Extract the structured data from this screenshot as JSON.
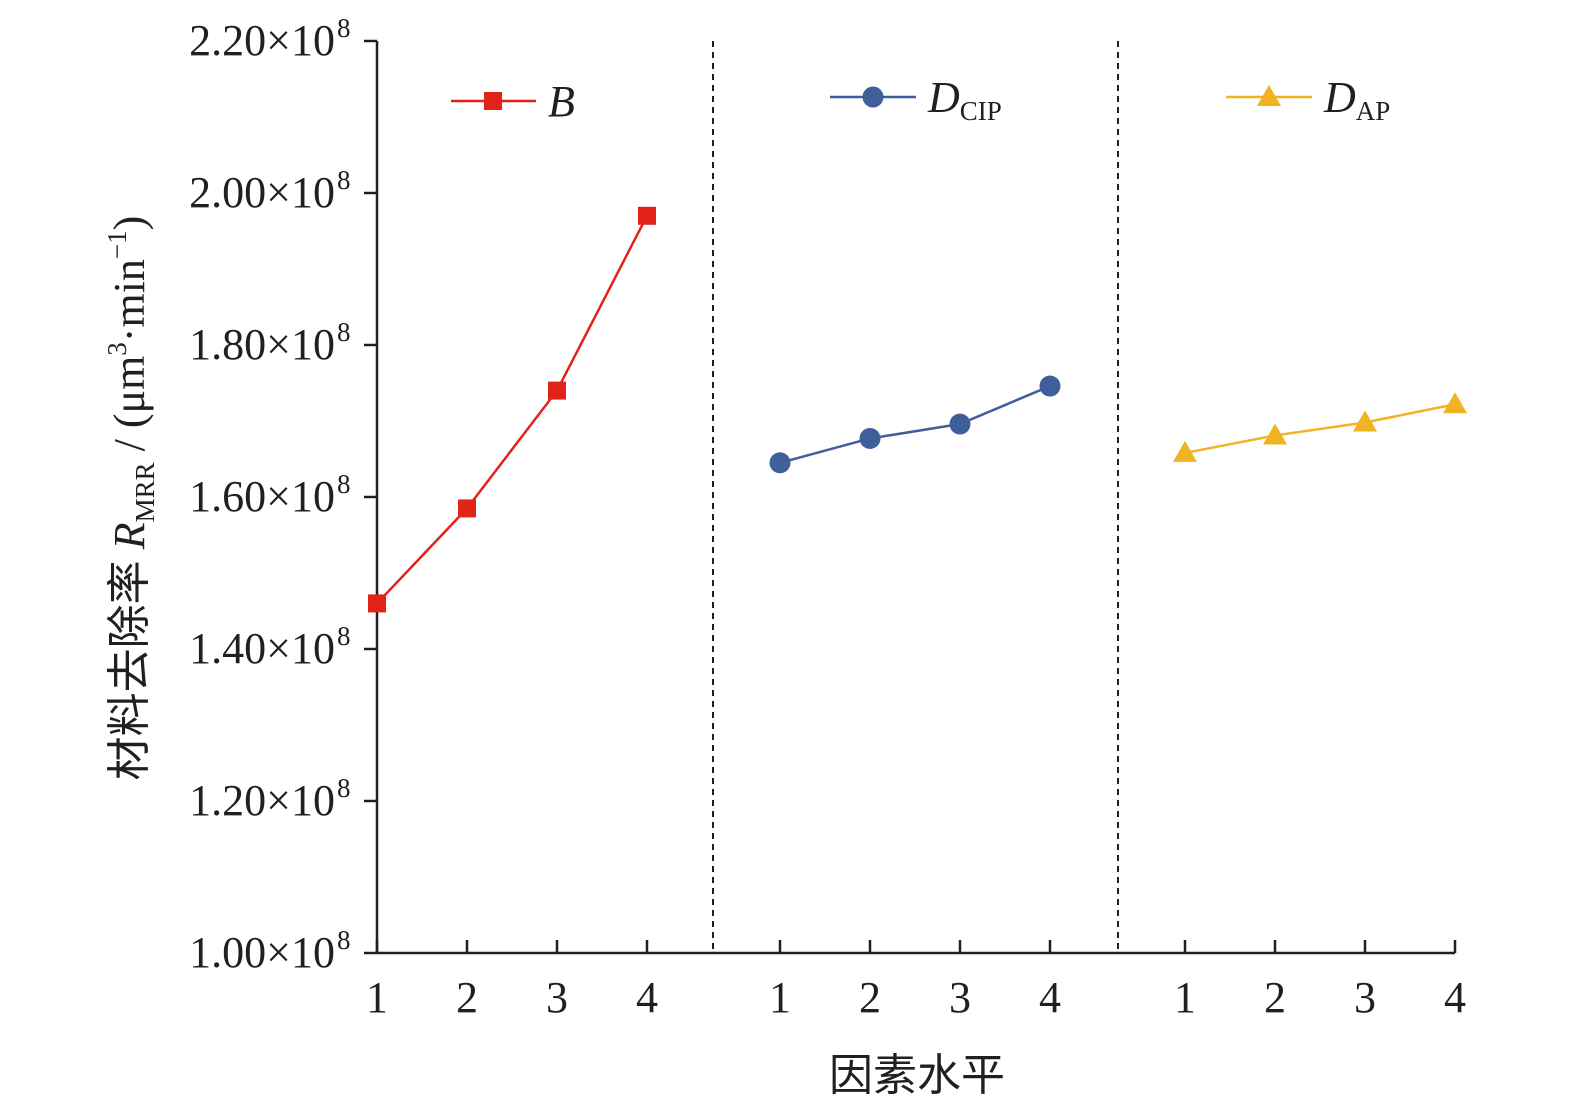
{
  "chart_data": {
    "type": "line",
    "ylabel": {
      "prefix": "材料去除率 ",
      "symbol": "R",
      "subscript": "MRR",
      "unit_open": " / (μm",
      "unit_sup1": "3",
      "unit_mid": "·min",
      "unit_sup2": "−1",
      "unit_close": ")"
    },
    "xlabel": "因素水平",
    "ylim": [
      100000000.0,
      220000000.0
    ],
    "y_ticks": [
      {
        "mantissa": "1.00×10",
        "exp": "8",
        "value": 100000000.0
      },
      {
        "mantissa": "1.20×10",
        "exp": "8",
        "value": 120000000.0
      },
      {
        "mantissa": "1.40×10",
        "exp": "8",
        "value": 140000000.0
      },
      {
        "mantissa": "1.60×10",
        "exp": "8",
        "value": 160000000.0
      },
      {
        "mantissa": "1.80×10",
        "exp": "8",
        "value": 180000000.0
      },
      {
        "mantissa": "2.00×10",
        "exp": "8",
        "value": 200000000.0
      },
      {
        "mantissa": "2.20×10",
        "exp": "8",
        "value": 220000000.0
      }
    ],
    "grid": false,
    "legend_position": "top of each panel",
    "series": [
      {
        "name": "B",
        "name_sub": "",
        "color": "#e2231a",
        "marker": "square",
        "x": [
          "1",
          "2",
          "3",
          "4"
        ],
        "values": [
          146000000.0,
          158500000.0,
          174000000.0,
          197000000.0
        ]
      },
      {
        "name": "D",
        "name_sub": "CIP",
        "color": "#3f5f9a",
        "marker": "circle",
        "x": [
          "1",
          "2",
          "3",
          "4"
        ],
        "values": [
          164500000.0,
          167700000.0,
          169600000.0,
          174600000.0
        ]
      },
      {
        "name": "D",
        "name_sub": "AP",
        "color": "#f0b323",
        "marker": "triangle",
        "x": [
          "1",
          "2",
          "3",
          "4"
        ],
        "values": [
          165800000.0,
          168100000.0,
          169800000.0,
          172200000.0
        ]
      }
    ]
  }
}
